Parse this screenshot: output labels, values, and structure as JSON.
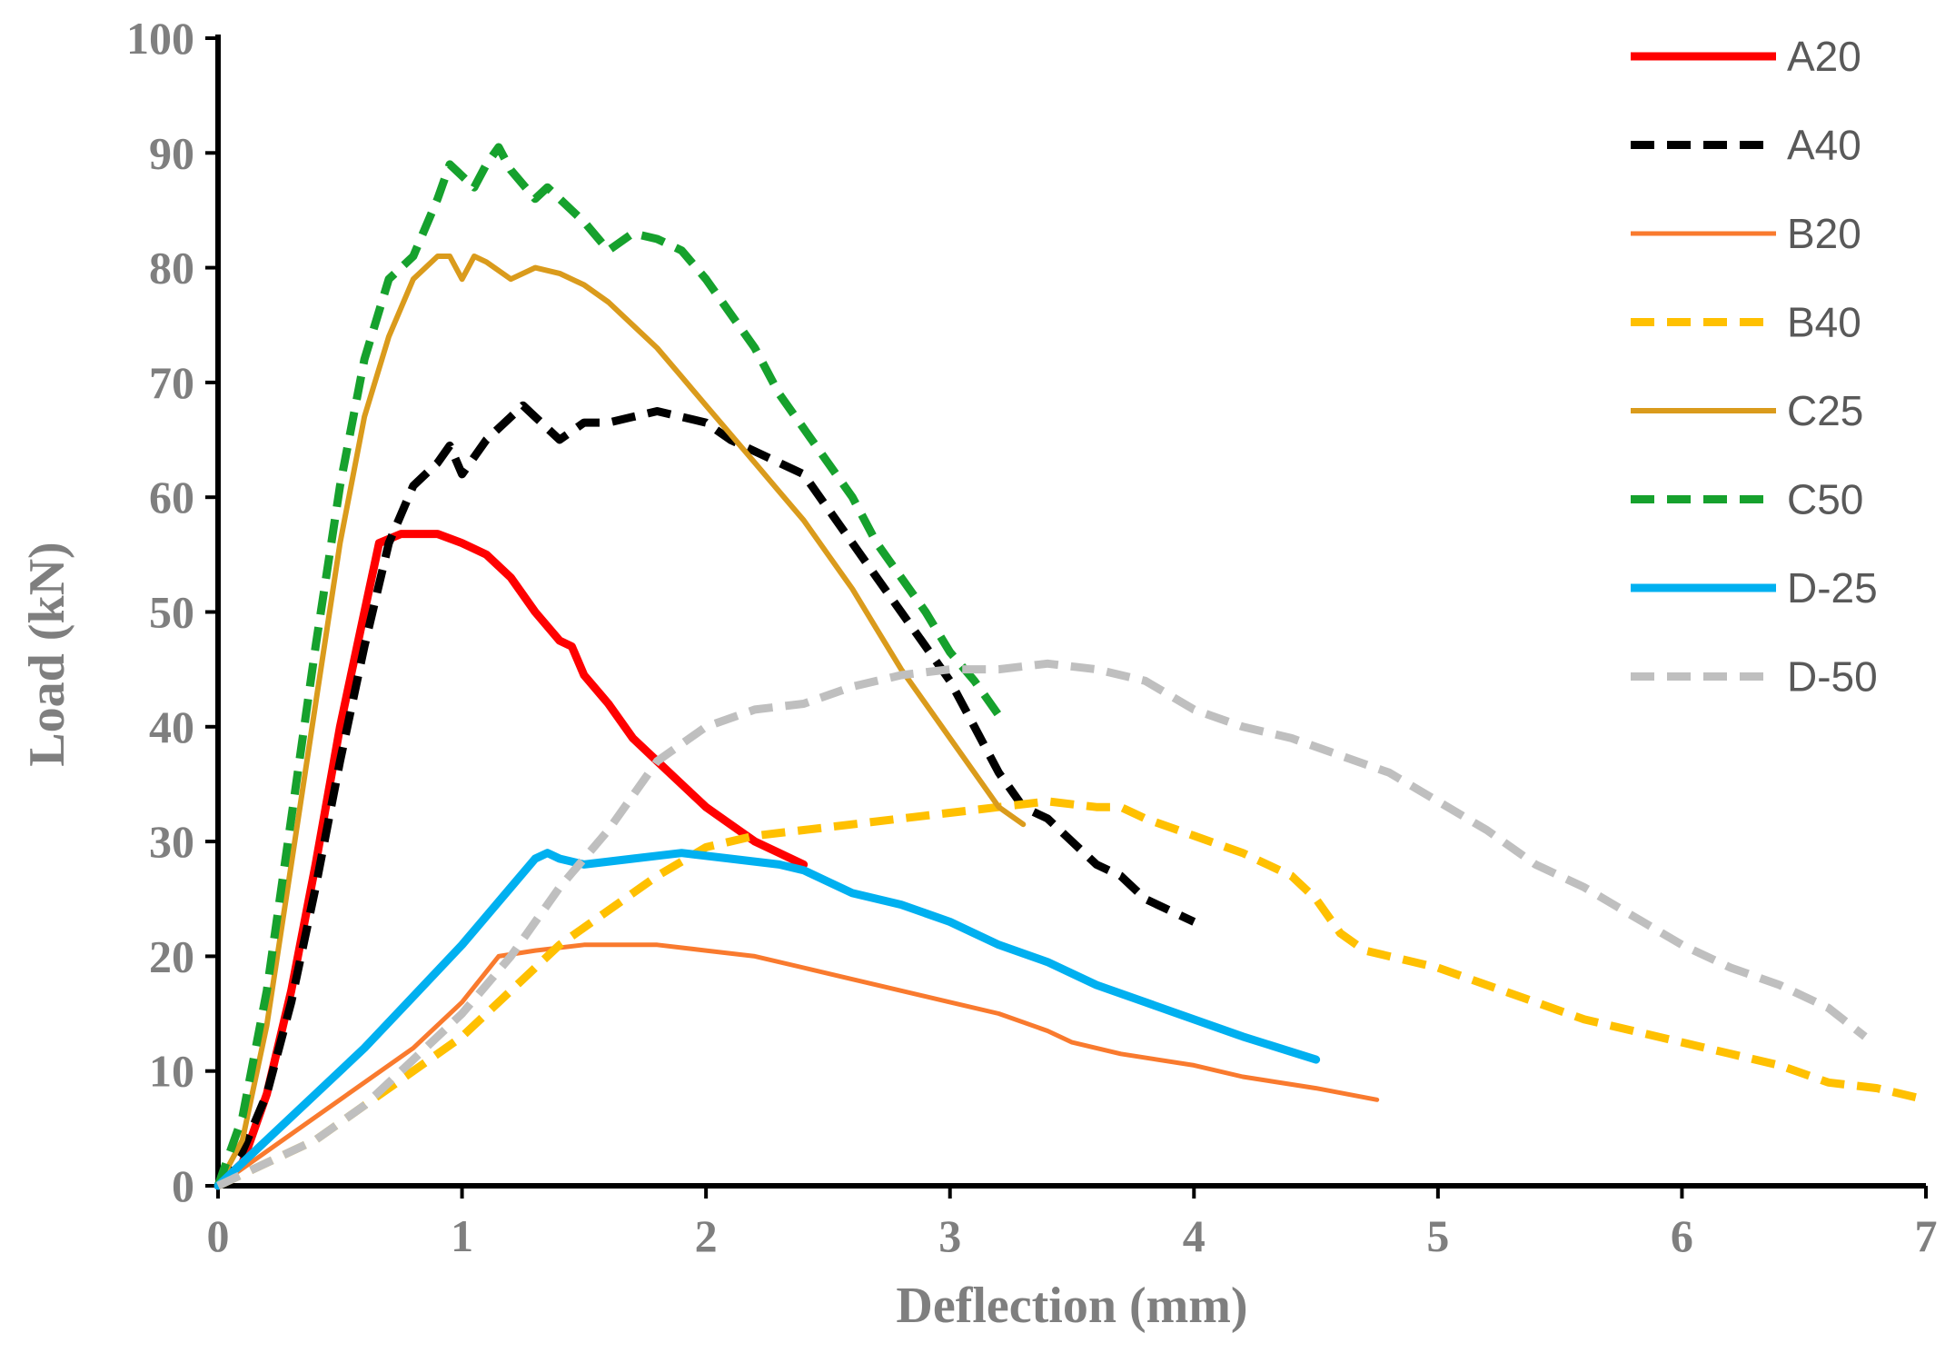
{
  "chart_data": {
    "type": "line",
    "title": "",
    "xlabel": "Deflection (mm)",
    "ylabel": "Load (kN)",
    "xlim": [
      0,
      7
    ],
    "ylim": [
      0,
      100
    ],
    "xticks": [
      "0",
      "1",
      "2",
      "3",
      "4",
      "5",
      "6",
      "7"
    ],
    "yticks": [
      "0",
      "10",
      "20",
      "30",
      "40",
      "50",
      "60",
      "70",
      "80",
      "90",
      "100"
    ],
    "grid": false,
    "legend_position": "right",
    "series": [
      {
        "name": "A20",
        "color": "#ff0000",
        "dash": "solid",
        "width": "thick",
        "points": [
          [
            0,
            0
          ],
          [
            0.1,
            2
          ],
          [
            0.2,
            8
          ],
          [
            0.3,
            17
          ],
          [
            0.4,
            28
          ],
          [
            0.5,
            40
          ],
          [
            0.6,
            50
          ],
          [
            0.66,
            56
          ],
          [
            0.75,
            56.8
          ],
          [
            0.9,
            56.8
          ],
          [
            1.0,
            56
          ],
          [
            1.1,
            55
          ],
          [
            1.2,
            53
          ],
          [
            1.3,
            50
          ],
          [
            1.4,
            47.5
          ],
          [
            1.45,
            47
          ],
          [
            1.5,
            44.5
          ],
          [
            1.6,
            42
          ],
          [
            1.7,
            39
          ],
          [
            1.8,
            37
          ],
          [
            1.9,
            35
          ],
          [
            2.0,
            33
          ],
          [
            2.1,
            31.5
          ],
          [
            2.2,
            30
          ],
          [
            2.3,
            29
          ],
          [
            2.4,
            28
          ]
        ]
      },
      {
        "name": "A40",
        "color": "#000000",
        "dash": "dashed",
        "width": "thick",
        "points": [
          [
            0,
            0
          ],
          [
            0.1,
            3
          ],
          [
            0.2,
            8
          ],
          [
            0.3,
            16
          ],
          [
            0.4,
            26
          ],
          [
            0.5,
            37
          ],
          [
            0.6,
            47
          ],
          [
            0.7,
            56
          ],
          [
            0.8,
            61
          ],
          [
            0.9,
            63
          ],
          [
            0.95,
            64.5
          ],
          [
            1.0,
            62
          ],
          [
            1.1,
            65
          ],
          [
            1.2,
            67
          ],
          [
            1.25,
            68
          ],
          [
            1.3,
            67
          ],
          [
            1.35,
            66
          ],
          [
            1.4,
            65
          ],
          [
            1.5,
            66.5
          ],
          [
            1.6,
            66.5
          ],
          [
            1.7,
            67
          ],
          [
            1.8,
            67.5
          ],
          [
            1.9,
            67
          ],
          [
            2.0,
            66.5
          ],
          [
            2.1,
            65
          ],
          [
            2.2,
            64
          ],
          [
            2.3,
            63
          ],
          [
            2.4,
            62
          ],
          [
            2.5,
            59
          ],
          [
            2.6,
            56
          ],
          [
            2.7,
            53
          ],
          [
            2.8,
            50
          ],
          [
            2.9,
            47
          ],
          [
            3.0,
            44
          ],
          [
            3.1,
            40
          ],
          [
            3.2,
            36
          ],
          [
            3.3,
            33
          ],
          [
            3.4,
            32
          ],
          [
            3.5,
            30
          ],
          [
            3.6,
            28
          ],
          [
            3.7,
            27
          ],
          [
            3.8,
            25
          ],
          [
            3.9,
            24
          ],
          [
            4.0,
            23
          ]
        ]
      },
      {
        "name": "B20",
        "color": "#f97a2e",
        "dash": "solid",
        "width": "thin",
        "points": [
          [
            0,
            0
          ],
          [
            0.2,
            3
          ],
          [
            0.4,
            6
          ],
          [
            0.6,
            9
          ],
          [
            0.8,
            12
          ],
          [
            1.0,
            16
          ],
          [
            1.15,
            20
          ],
          [
            1.3,
            20.5
          ],
          [
            1.5,
            21
          ],
          [
            1.8,
            21
          ],
          [
            2.0,
            20.5
          ],
          [
            2.2,
            20
          ],
          [
            2.4,
            19
          ],
          [
            2.6,
            18
          ],
          [
            2.8,
            17
          ],
          [
            3.0,
            16
          ],
          [
            3.2,
            15
          ],
          [
            3.4,
            13.5
          ],
          [
            3.5,
            12.5
          ],
          [
            3.7,
            11.5
          ],
          [
            4.0,
            10.5
          ],
          [
            4.2,
            9.5
          ],
          [
            4.5,
            8.5
          ],
          [
            4.75,
            7.5
          ]
        ]
      },
      {
        "name": "B40",
        "color": "#ffc000",
        "dash": "dashed",
        "width": "thick",
        "points": [
          [
            0,
            0
          ],
          [
            0.2,
            2
          ],
          [
            0.4,
            4
          ],
          [
            0.6,
            7
          ],
          [
            0.8,
            10
          ],
          [
            1.0,
            13
          ],
          [
            1.2,
            17
          ],
          [
            1.4,
            21
          ],
          [
            1.6,
            24
          ],
          [
            1.8,
            27
          ],
          [
            2.0,
            29.5
          ],
          [
            2.2,
            30.5
          ],
          [
            2.4,
            31
          ],
          [
            2.6,
            31.5
          ],
          [
            2.8,
            32
          ],
          [
            3.0,
            32.5
          ],
          [
            3.2,
            33
          ],
          [
            3.4,
            33.5
          ],
          [
            3.6,
            33
          ],
          [
            3.7,
            33
          ],
          [
            3.8,
            32
          ],
          [
            4.0,
            30.5
          ],
          [
            4.2,
            29
          ],
          [
            4.4,
            27
          ],
          [
            4.5,
            25
          ],
          [
            4.6,
            22
          ],
          [
            4.7,
            20.5
          ],
          [
            5.0,
            19
          ],
          [
            5.2,
            17.5
          ],
          [
            5.4,
            16
          ],
          [
            5.6,
            14.5
          ],
          [
            5.8,
            13.5
          ],
          [
            6.0,
            12.5
          ],
          [
            6.2,
            11.5
          ],
          [
            6.4,
            10.5
          ],
          [
            6.6,
            9
          ],
          [
            6.8,
            8.5
          ],
          [
            7.0,
            7.5
          ]
        ]
      },
      {
        "name": "C25",
        "color": "#da9b1c",
        "dash": "solid",
        "width": "medium",
        "points": [
          [
            0,
            0
          ],
          [
            0.1,
            4
          ],
          [
            0.2,
            14
          ],
          [
            0.3,
            28
          ],
          [
            0.4,
            42
          ],
          [
            0.5,
            56
          ],
          [
            0.6,
            67
          ],
          [
            0.7,
            74
          ],
          [
            0.8,
            79
          ],
          [
            0.9,
            81
          ],
          [
            0.95,
            81
          ],
          [
            1.0,
            79
          ],
          [
            1.05,
            81
          ],
          [
            1.1,
            80.5
          ],
          [
            1.2,
            79
          ],
          [
            1.3,
            80
          ],
          [
            1.4,
            79.5
          ],
          [
            1.5,
            78.5
          ],
          [
            1.6,
            77
          ],
          [
            1.7,
            75
          ],
          [
            1.8,
            73
          ],
          [
            1.9,
            70.5
          ],
          [
            2.0,
            68
          ],
          [
            2.1,
            65.5
          ],
          [
            2.2,
            63
          ],
          [
            2.3,
            60.5
          ],
          [
            2.4,
            58
          ],
          [
            2.5,
            55
          ],
          [
            2.6,
            52
          ],
          [
            2.7,
            48.5
          ],
          [
            2.8,
            45
          ],
          [
            2.9,
            42
          ],
          [
            3.0,
            39
          ],
          [
            3.1,
            36
          ],
          [
            3.2,
            33
          ],
          [
            3.3,
            31.5
          ]
        ]
      },
      {
        "name": "C50",
        "color": "#16a12d",
        "dash": "dashed",
        "width": "thick",
        "points": [
          [
            0,
            0
          ],
          [
            0.1,
            6
          ],
          [
            0.2,
            17
          ],
          [
            0.3,
            32
          ],
          [
            0.4,
            47
          ],
          [
            0.5,
            61
          ],
          [
            0.6,
            72
          ],
          [
            0.7,
            79
          ],
          [
            0.8,
            81
          ],
          [
            0.9,
            86
          ],
          [
            0.95,
            89
          ],
          [
            1.0,
            88
          ],
          [
            1.05,
            87
          ],
          [
            1.1,
            89
          ],
          [
            1.15,
            90.5
          ],
          [
            1.2,
            88.5
          ],
          [
            1.3,
            86
          ],
          [
            1.35,
            87
          ],
          [
            1.4,
            86
          ],
          [
            1.45,
            85
          ],
          [
            1.5,
            84
          ],
          [
            1.6,
            81.5
          ],
          [
            1.7,
            83
          ],
          [
            1.8,
            82.5
          ],
          [
            1.9,
            81.5
          ],
          [
            2.0,
            79
          ],
          [
            2.1,
            76
          ],
          [
            2.2,
            73
          ],
          [
            2.3,
            69
          ],
          [
            2.4,
            66
          ],
          [
            2.5,
            63
          ],
          [
            2.6,
            60
          ],
          [
            2.7,
            56
          ],
          [
            2.8,
            53
          ],
          [
            2.9,
            50
          ],
          [
            3.0,
            46.5
          ],
          [
            3.1,
            44
          ],
          [
            3.2,
            41
          ]
        ]
      },
      {
        "name": "D-25",
        "color": "#00b0f0",
        "dash": "solid",
        "width": "thick",
        "points": [
          [
            0,
            0
          ],
          [
            0.2,
            4
          ],
          [
            0.4,
            8
          ],
          [
            0.6,
            12
          ],
          [
            0.8,
            16.5
          ],
          [
            1.0,
            21
          ],
          [
            1.2,
            26
          ],
          [
            1.3,
            28.5
          ],
          [
            1.35,
            29
          ],
          [
            1.4,
            28.5
          ],
          [
            1.5,
            28
          ],
          [
            1.7,
            28.5
          ],
          [
            1.9,
            29
          ],
          [
            2.1,
            28.5
          ],
          [
            2.3,
            28
          ],
          [
            2.4,
            27.5
          ],
          [
            2.5,
            26.5
          ],
          [
            2.6,
            25.5
          ],
          [
            2.8,
            24.5
          ],
          [
            3.0,
            23
          ],
          [
            3.2,
            21
          ],
          [
            3.4,
            19.5
          ],
          [
            3.6,
            17.5
          ],
          [
            3.8,
            16
          ],
          [
            4.0,
            14.5
          ],
          [
            4.2,
            13
          ],
          [
            4.5,
            11
          ]
        ]
      },
      {
        "name": "D-50",
        "color": "#bfbfbf",
        "dash": "dashed",
        "width": "thick",
        "points": [
          [
            0,
            0
          ],
          [
            0.2,
            2
          ],
          [
            0.4,
            4
          ],
          [
            0.6,
            7
          ],
          [
            0.8,
            11
          ],
          [
            1.0,
            15
          ],
          [
            1.2,
            20
          ],
          [
            1.4,
            26
          ],
          [
            1.6,
            31
          ],
          [
            1.8,
            37
          ],
          [
            2.0,
            40
          ],
          [
            2.2,
            41.5
          ],
          [
            2.4,
            42
          ],
          [
            2.6,
            43.5
          ],
          [
            2.8,
            44.5
          ],
          [
            3.0,
            45
          ],
          [
            3.2,
            45
          ],
          [
            3.4,
            45.5
          ],
          [
            3.6,
            45
          ],
          [
            3.8,
            44
          ],
          [
            4.0,
            41.5
          ],
          [
            4.2,
            40
          ],
          [
            4.4,
            39
          ],
          [
            4.6,
            37.5
          ],
          [
            4.8,
            36
          ],
          [
            5.0,
            33.5
          ],
          [
            5.2,
            31
          ],
          [
            5.4,
            28
          ],
          [
            5.6,
            26
          ],
          [
            5.8,
            23.5
          ],
          [
            6.0,
            21
          ],
          [
            6.2,
            19
          ],
          [
            6.4,
            17.5
          ],
          [
            6.6,
            15.5
          ],
          [
            6.75,
            13
          ]
        ]
      }
    ]
  }
}
